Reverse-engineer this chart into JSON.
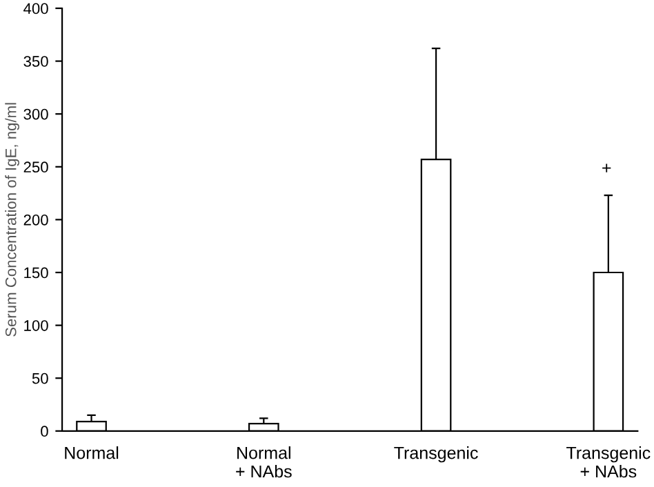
{
  "chart_data": {
    "type": "bar",
    "ylabel": "Serum Concentration of IgE, ng/ml",
    "categories": [
      "Normal",
      "Normal\n+ NAbs",
      "Transgenic",
      "Transgenic\n+ NAbs"
    ],
    "values": [
      9,
      7,
      257,
      150
    ],
    "errors": [
      [
        9,
        15
      ],
      [
        7,
        12
      ],
      [
        257,
        362
      ],
      [
        150,
        223
      ]
    ],
    "colors": [
      "#ffffff",
      "#ffffff",
      "#ffffff",
      "#ffffff"
    ],
    "ylim": [
      0,
      400
    ],
    "yticks": [
      0,
      50,
      100,
      150,
      200,
      250,
      300,
      350,
      400
    ],
    "annotations": [
      "+"
    ],
    "grid": false,
    "legend": false
  }
}
